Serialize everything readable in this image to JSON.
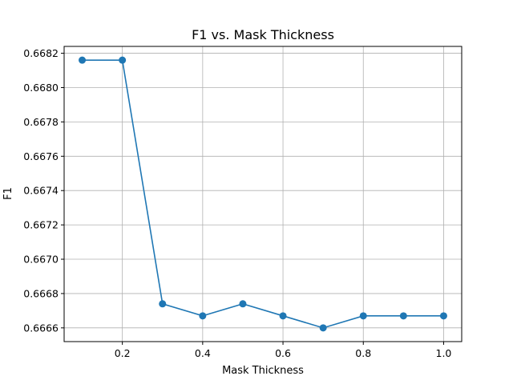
{
  "chart_data": {
    "type": "line",
    "title": "F1 vs. Mask Thickness",
    "xlabel": "Mask Thickness",
    "ylabel": "F1",
    "x": [
      0.1,
      0.2,
      0.3,
      0.4,
      0.5,
      0.6,
      0.7,
      0.8,
      0.9,
      1.0
    ],
    "series": [
      {
        "values": [
          0.66816,
          0.66816,
          0.66674,
          0.66667,
          0.66674,
          0.66667,
          0.6666,
          0.66667,
          0.66667,
          0.66667
        ]
      }
    ],
    "xlim": [
      0.055,
      1.045
    ],
    "ylim": [
      0.66652,
      0.66824
    ],
    "xticks": [
      0.2,
      0.4,
      0.6,
      0.8,
      1.0
    ],
    "xtick_labels": [
      "0.2",
      "0.4",
      "0.6",
      "0.8",
      "1.0"
    ],
    "yticks": [
      0.6666,
      0.6668,
      0.667,
      0.6672,
      0.6674,
      0.6676,
      0.6678,
      0.668,
      0.6682
    ],
    "ytick_labels": [
      "0.6666",
      "0.6668",
      "0.6670",
      "0.6672",
      "0.6674",
      "0.6676",
      "0.6678",
      "0.6680",
      "0.6682"
    ],
    "grid": true,
    "line_color": "#1f77b4",
    "marker": "circle"
  }
}
